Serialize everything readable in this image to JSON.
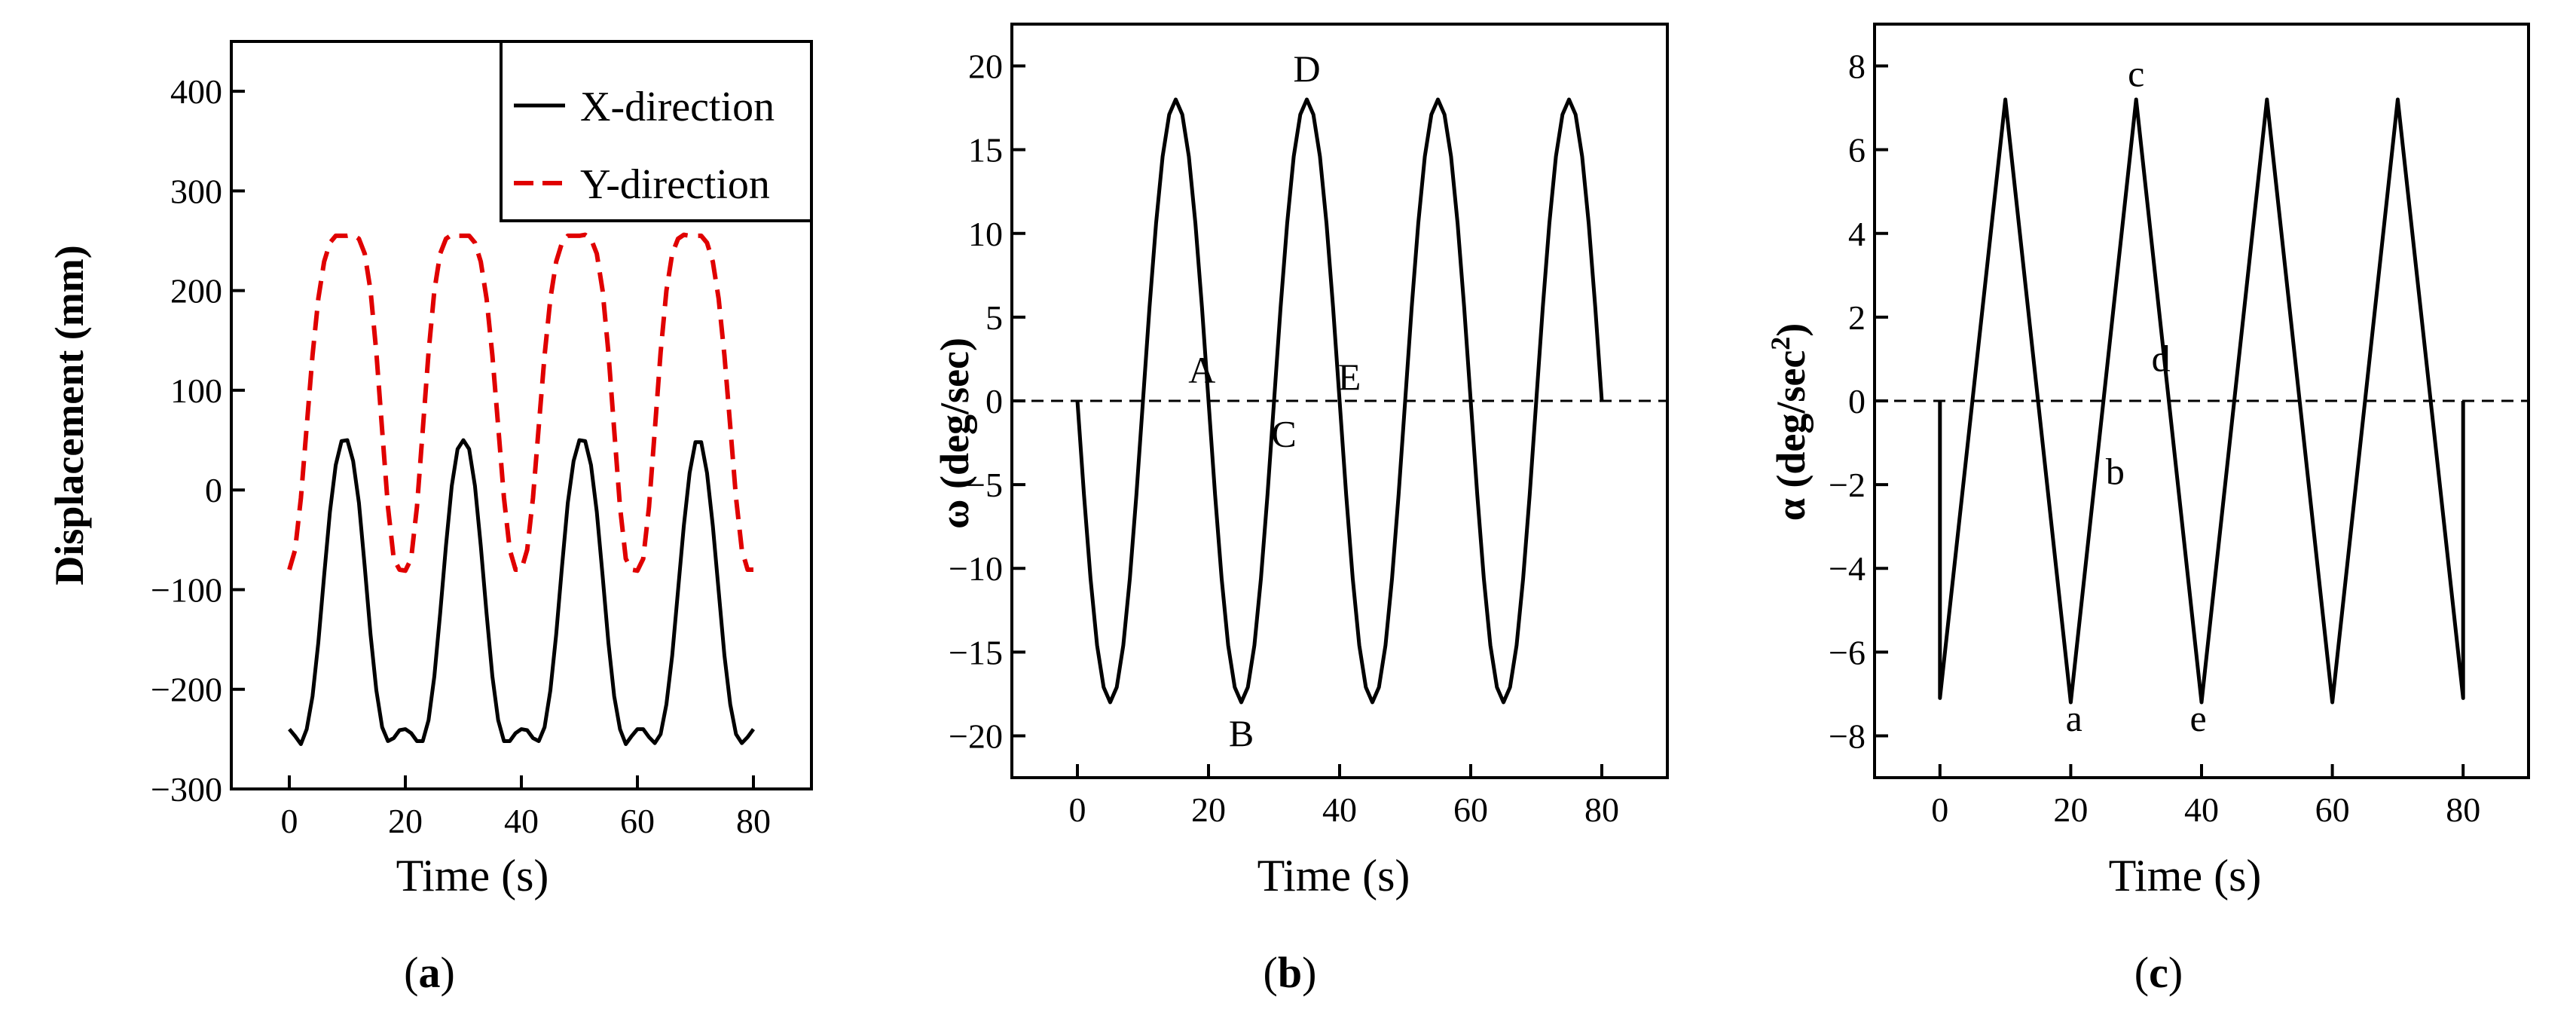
{
  "colors": {
    "x_direction": "#000000",
    "y_direction": "#e00000",
    "zero_line": "#000000"
  },
  "chart_data": [
    {
      "id": "a",
      "type": "line",
      "caption_open": "(",
      "caption_letter": "a",
      "caption_close": ")",
      "xlabel": "Time (s)",
      "ylabel": "Displacement (mm)",
      "xlim": [
        -10,
        90
      ],
      "ylim": [
        -300,
        450
      ],
      "xticks": [
        0,
        20,
        40,
        60,
        80
      ],
      "xtick_labels": [
        "0",
        "20",
        "40",
        "60",
        "80"
      ],
      "yticks": [
        -300,
        -200,
        -100,
        0,
        100,
        200,
        300,
        400
      ],
      "ytick_labels": [
        "−300",
        "−200",
        "−100",
        "0",
        "100",
        "200",
        "300",
        "400"
      ],
      "legend_position": "top-right",
      "series": [
        {
          "name": "X-direction",
          "style": "solid",
          "color": "#000000",
          "x": [
            0,
            1,
            2,
            3,
            4,
            5,
            6,
            7,
            8,
            9,
            10,
            11,
            12,
            13,
            14,
            15,
            16,
            17,
            18,
            19,
            20,
            21,
            22,
            23,
            24,
            25,
            26,
            27,
            28,
            29,
            30,
            31,
            32,
            33,
            34,
            35,
            36,
            37,
            38,
            39,
            40,
            41,
            42,
            43,
            44,
            45,
            46,
            47,
            48,
            49,
            50,
            51,
            52,
            53,
            54,
            55,
            56,
            57,
            58,
            59,
            60,
            61,
            62,
            63,
            64,
            65,
            66,
            67,
            68,
            69,
            70,
            71,
            72,
            73,
            74,
            75,
            76,
            77,
            78,
            79,
            80
          ],
          "y": [
            -240,
            -247,
            -255,
            -240,
            -207,
            -153,
            -86,
            -22,
            25,
            49,
            50,
            29,
            -13,
            -77,
            -145,
            -201,
            -238,
            -252,
            -249,
            -241,
            -240,
            -244,
            -252,
            -252,
            -231,
            -187,
            -124,
            -56,
            4,
            41,
            50,
            41,
            4,
            -56,
            -124,
            -187,
            -231,
            -252,
            -252,
            -244,
            -240,
            -241,
            -249,
            -252,
            -238,
            -201,
            -145,
            -77,
            -13,
            29,
            50,
            49,
            25,
            -22,
            -86,
            -153,
            -207,
            -240,
            -255,
            -247,
            -240,
            -240,
            -248,
            -254,
            -245,
            -215,
            -166,
            -101,
            -36,
            17,
            48,
            48,
            17,
            -36,
            -101,
            -166,
            -215,
            -245,
            -254,
            -248,
            -240
          ]
        },
        {
          "name": "Y-direction",
          "style": "dashed",
          "color": "#e00000",
          "x": [
            0,
            1,
            2,
            3,
            4,
            5,
            6,
            7,
            8,
            9,
            10,
            11,
            12,
            13,
            14,
            15,
            16,
            17,
            18,
            19,
            20,
            21,
            22,
            23,
            24,
            25,
            26,
            27,
            28,
            29,
            30,
            31,
            32,
            33,
            34,
            35,
            36,
            37,
            38,
            39,
            40,
            41,
            42,
            43,
            44,
            45,
            46,
            47,
            48,
            49,
            50,
            51,
            52,
            53,
            54,
            55,
            56,
            57,
            58,
            59,
            60,
            61,
            62,
            63,
            64,
            65,
            66,
            67,
            68,
            69,
            70,
            71,
            72,
            73,
            74,
            75,
            76,
            77,
            78,
            79,
            80
          ],
          "y": [
            -80,
            -60,
            -8,
            64,
            135,
            192,
            229,
            248,
            255,
            255,
            255,
            256,
            252,
            237,
            200,
            138,
            60,
            -17,
            -69,
            -80,
            -81,
            -69,
            -17,
            60,
            138,
            200,
            237,
            252,
            256,
            255,
            255,
            255,
            248,
            229,
            192,
            135,
            64,
            -8,
            -60,
            -80,
            -80,
            -60,
            -8,
            64,
            135,
            192,
            229,
            248,
            255,
            255,
            255,
            256,
            252,
            237,
            200,
            138,
            60,
            -17,
            -69,
            -80,
            -81,
            -69,
            -17,
            60,
            138,
            200,
            237,
            252,
            256,
            255,
            255,
            255,
            248,
            229,
            192,
            135,
            64,
            -8,
            -60,
            -80,
            -80
          ]
        }
      ],
      "annotations": []
    },
    {
      "id": "b",
      "type": "line",
      "caption_open": "(",
      "caption_letter": "b",
      "caption_close": ")",
      "xlabel": "Time (s)",
      "ylabel": "ω (deg/sec)",
      "xlim": [
        -10,
        90
      ],
      "ylim": [
        -22.5,
        22.5
      ],
      "xticks": [
        0,
        20,
        40,
        60,
        80
      ],
      "xtick_labels": [
        "0",
        "20",
        "40",
        "60",
        "80"
      ],
      "yticks": [
        -20,
        -15,
        -10,
        -5,
        0,
        5,
        10,
        15,
        20
      ],
      "ytick_labels": [
        "−20",
        "−15",
        "−10",
        "−5",
        "0",
        "5",
        "10",
        "15",
        "20"
      ],
      "zero_line": true,
      "series": [
        {
          "style": "solid",
          "color": "#000000",
          "x": [
            0,
            1,
            2,
            3,
            4,
            5,
            6,
            7,
            8,
            9,
            10,
            11,
            12,
            13,
            14,
            15,
            16,
            17,
            18,
            19,
            20,
            21,
            22,
            23,
            24,
            25,
            26,
            27,
            28,
            29,
            30,
            31,
            32,
            33,
            34,
            35,
            36,
            37,
            38,
            39,
            40,
            41,
            42,
            43,
            44,
            45,
            46,
            47,
            48,
            49,
            50,
            51,
            52,
            53,
            54,
            55,
            56,
            57,
            58,
            59,
            60,
            61,
            62,
            63,
            64,
            65,
            66,
            67,
            68,
            69,
            70,
            71,
            72,
            73,
            74,
            75,
            76,
            77,
            78,
            79,
            80
          ],
          "y": [
            0,
            -5.6,
            -10.6,
            -14.6,
            -17.1,
            -18.0,
            -17.1,
            -14.6,
            -10.6,
            -5.6,
            0,
            5.6,
            10.6,
            14.6,
            17.1,
            18.0,
            17.1,
            14.6,
            10.6,
            5.6,
            0,
            -5.6,
            -10.6,
            -14.6,
            -17.1,
            -18.0,
            -17.1,
            -14.6,
            -10.6,
            -5.6,
            0,
            5.6,
            10.6,
            14.6,
            17.1,
            18.0,
            17.1,
            14.6,
            10.6,
            5.6,
            0,
            -5.6,
            -10.6,
            -14.6,
            -17.1,
            -18.0,
            -17.1,
            -14.6,
            -10.6,
            -5.6,
            0,
            5.6,
            10.6,
            14.6,
            17.1,
            18.0,
            17.1,
            14.6,
            10.6,
            5.6,
            0,
            -5.6,
            -10.6,
            -14.6,
            -17.1,
            -18.0,
            -17.1,
            -14.6,
            -10.6,
            -5.6,
            0,
            5.6,
            10.6,
            14.6,
            17.1,
            18.0,
            17.1,
            14.6,
            10.6,
            5.6,
            0
          ]
        }
      ],
      "annotations": [
        {
          "text": "D",
          "x": 35,
          "y": 19.8
        },
        {
          "text": "A",
          "x": 19,
          "y": 1.8
        },
        {
          "text": "C",
          "x": 31.5,
          "y": -2.0
        },
        {
          "text": "E",
          "x": 41.5,
          "y": 1.4
        },
        {
          "text": "B",
          "x": 25,
          "y": -19.9
        }
      ]
    },
    {
      "id": "c",
      "type": "line",
      "caption_open": "(",
      "caption_letter": "c",
      "caption_close": ")",
      "xlabel": "Time (s)",
      "ylabel": "α (deg/sec²)",
      "ylabel_main": "α (deg/sec",
      "ylabel_sup": "2",
      "ylabel_close": ")",
      "xlim": [
        -10,
        90
      ],
      "ylim": [
        -9,
        9
      ],
      "xticks": [
        0,
        20,
        40,
        60,
        80
      ],
      "xtick_labels": [
        "0",
        "20",
        "40",
        "60",
        "80"
      ],
      "yticks": [
        -8,
        -6,
        -4,
        -2,
        0,
        2,
        4,
        6,
        8
      ],
      "ytick_labels": [
        "−8",
        "−6",
        "−4",
        "−2",
        "0",
        "2",
        "4",
        "6",
        "8"
      ],
      "zero_line": true,
      "series": [
        {
          "style": "solid",
          "color": "#000000",
          "x": [
            0,
            0,
            10,
            20,
            30,
            40,
            50,
            60,
            70,
            80,
            80
          ],
          "y": [
            0,
            -7.1,
            7.2,
            -7.2,
            7.2,
            -7.2,
            7.2,
            -7.2,
            7.2,
            -7.1,
            0
          ]
        }
      ],
      "annotations": [
        {
          "text": "c",
          "x": 30,
          "y": 7.8
        },
        {
          "text": "d",
          "x": 33.8,
          "y": 1.0
        },
        {
          "text": "b",
          "x": 26.8,
          "y": -1.7
        },
        {
          "text": "a",
          "x": 20.5,
          "y": -7.6
        },
        {
          "text": "e",
          "x": 39.5,
          "y": -7.6
        }
      ]
    }
  ]
}
